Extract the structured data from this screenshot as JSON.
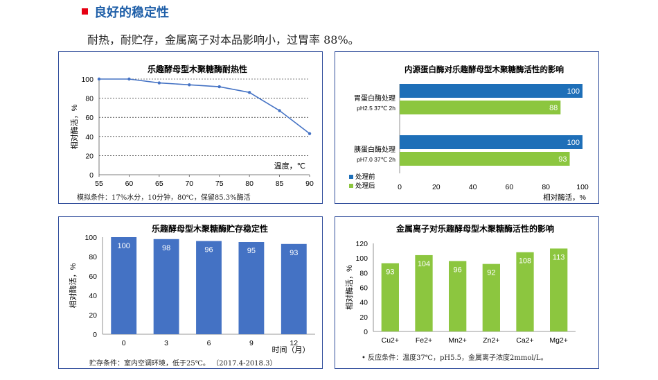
{
  "header": {
    "title": "良好的稳定性",
    "subtitle": "耐热，耐贮存，金属离子对本品影响小，过胃率 88%。"
  },
  "chart_data": [
    {
      "id": "heat",
      "type": "line",
      "title": "乐趣酵母型木聚糖酶耐热性",
      "xlabel": "温度，℃",
      "ylabel": "相对酶活，%",
      "x": [
        55,
        60,
        65,
        70,
        75,
        80,
        85,
        90
      ],
      "xlim": [
        55,
        90
      ],
      "ylim": [
        0,
        100
      ],
      "xticks": [
        "55",
        "60",
        "65",
        "70",
        "75",
        "80",
        "85",
        "90"
      ],
      "yticks": [
        "0",
        "20",
        "40",
        "60",
        "80",
        "100"
      ],
      "series": [
        {
          "name": "相对酶活",
          "x": [
            55,
            60,
            65,
            70,
            75,
            80,
            85,
            90
          ],
          "values": [
            100,
            100,
            96,
            94,
            92,
            86,
            67,
            43
          ]
        }
      ],
      "grid": "horizontal dashed",
      "note": "模拟条件：17%水分，10分钟，80℃，保留85.3%酶活",
      "color": "#4472c4"
    },
    {
      "id": "protease",
      "type": "bar",
      "orientation": "horizontal",
      "title": "内源蛋白酶对乐趣酵母型木聚糖酶活性的影响",
      "xlabel": "相对酶活，%",
      "xlim": [
        0,
        100
      ],
      "xticks": [
        "0",
        "20",
        "40",
        "60",
        "80",
        "100"
      ],
      "categories": [
        {
          "name": "胃蛋白酶处理",
          "condition": "pH2.5 37℃ 2h"
        },
        {
          "name": "胰蛋白酶处理",
          "condition": "pH7.0 37℃ 2h"
        }
      ],
      "series": [
        {
          "name": "处理前",
          "values": [
            100,
            100
          ],
          "labels": [
            "100",
            "100"
          ],
          "color": "#1e6fb8"
        },
        {
          "name": "处理后",
          "values": [
            88,
            93
          ],
          "labels": [
            "88",
            "93"
          ],
          "color": "#8cc63f"
        }
      ],
      "legend": "bottom-left"
    },
    {
      "id": "storage",
      "type": "bar",
      "title": "乐趣酵母型木聚糖酶贮存稳定性",
      "xlabel": "时间（月）",
      "ylabel": "相对酶活，%",
      "categories": [
        "0",
        "3",
        "6",
        "9",
        "12"
      ],
      "values": [
        100,
        98,
        96,
        95,
        93
      ],
      "labels": [
        "100",
        "98",
        "96",
        "95",
        "93"
      ],
      "ylim": [
        0,
        100
      ],
      "yticks": [
        "0",
        "20",
        "40",
        "60",
        "80",
        "100"
      ],
      "note": "贮存条件：室内空调环境，低于25℃。  （2017.4-2018.3）",
      "color": "#4472c4"
    },
    {
      "id": "metal",
      "type": "bar",
      "title": "金属离子对乐趣酵母型木聚糖酶活性的影响",
      "ylabel": "相对酶活，%",
      "categories": [
        "Cu2+",
        "Fe2+",
        "Mn2+",
        "Zn2+",
        "Ca2+",
        "Mg2+"
      ],
      "values": [
        93,
        104,
        96,
        92,
        108,
        113
      ],
      "labels": [
        "93",
        "104",
        "96",
        "92",
        "108",
        "113"
      ],
      "ylim": [
        0,
        120
      ],
      "yticks": [
        "0",
        "20",
        "40",
        "60",
        "80",
        "100",
        "120"
      ],
      "note": "• 反应条件：温度37℃，pH5.5，金属离子浓度2mmol/L。",
      "color": "#8cc63f"
    }
  ]
}
